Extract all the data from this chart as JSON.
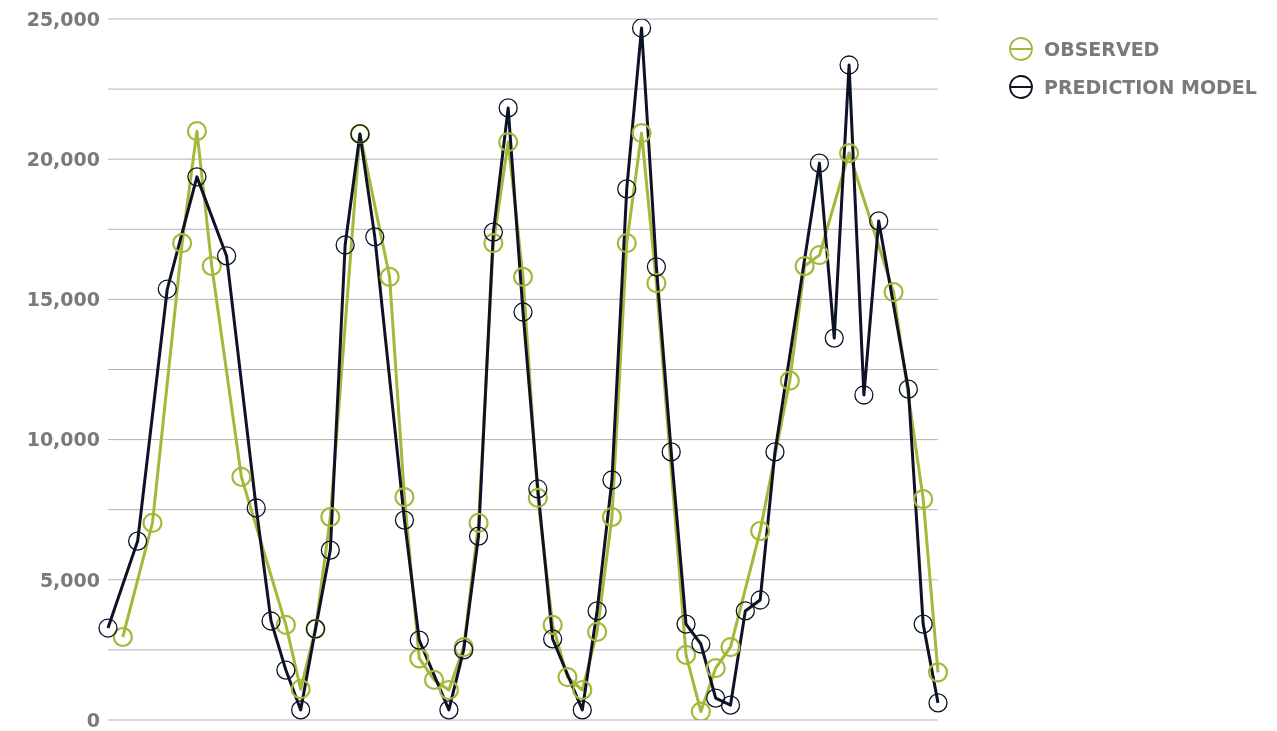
{
  "chart_data": {
    "type": "line",
    "tick_labels": "y",
    "grid": "y",
    "legend": "top right",
    "marker": "circle",
    "line_style": "solid",
    "categories": [
      null,
      null,
      null,
      null,
      null,
      null,
      null,
      null,
      null,
      null,
      null,
      null,
      null,
      null,
      null,
      null,
      null,
      null,
      null,
      null,
      null,
      null,
      null,
      null,
      null,
      null,
      null,
      null,
      null,
      null,
      null,
      null,
      null,
      null,
      null,
      null,
      null,
      null,
      null,
      null,
      null,
      null,
      null,
      null,
      null,
      null,
      null,
      null,
      null,
      null,
      null,
      null,
      null,
      null,
      null,
      null,
      null
    ],
    "ylim": [
      0,
      25000
    ],
    "yticks": [
      {
        "value": 0,
        "label": "0"
      },
      {
        "value": 2500,
        "label": null
      },
      {
        "value": 5000,
        "label": "5,000"
      },
      {
        "value": 7500,
        "label": null
      },
      {
        "value": 10000,
        "label": "10,000"
      },
      {
        "value": 12500,
        "label": null
      },
      {
        "value": 15000,
        "label": "15,000"
      },
      {
        "value": 17500,
        "label": null
      },
      {
        "value": 20000,
        "label": "20,000"
      },
      {
        "value": 22500,
        "label": null
      },
      {
        "value": 25000,
        "label": "25,000"
      }
    ],
    "series": [
      {
        "name": "OBSERVED",
        "color": "#a4b83a",
        "values": [
          null,
          2960,
          null,
          7030,
          null,
          17010,
          21000,
          16190,
          null,
          8670,
          null,
          null,
          3390,
          1100,
          3250,
          7240,
          null,
          20900,
          null,
          15800,
          7950,
          2200,
          1430,
          1070,
          2600,
          7030,
          17010,
          20610,
          15800,
          7920,
          3390,
          1530,
          1070,
          3140,
          7240,
          17010,
          20930,
          15580,
          null,
          2320,
          300,
          1850,
          2600,
          null,
          6740,
          null,
          12100,
          16190,
          16580,
          null,
          20220,
          null,
          null,
          15260,
          null,
          7880,
          1700
        ]
      },
      {
        "name": "PREDICTION MODEL",
        "color": "#0d1326",
        "values": [
          3280,
          null,
          6380,
          null,
          15370,
          null,
          19370,
          null,
          16550,
          null,
          7560,
          3530,
          1780,
          360,
          3250,
          6060,
          16940,
          20900,
          17230,
          null,
          7130,
          2850,
          null,
          360,
          2500,
          6560,
          17400,
          21830,
          14550,
          8240,
          2890,
          null,
          360,
          3890,
          8560,
          18940,
          24680,
          16160,
          9560,
          3420,
          2710,
          780,
          530,
          3890,
          4280,
          9560,
          null,
          null,
          19860,
          13620,
          23360,
          11590,
          17800,
          null,
          11800,
          3420,
          610
        ]
      }
    ]
  }
}
